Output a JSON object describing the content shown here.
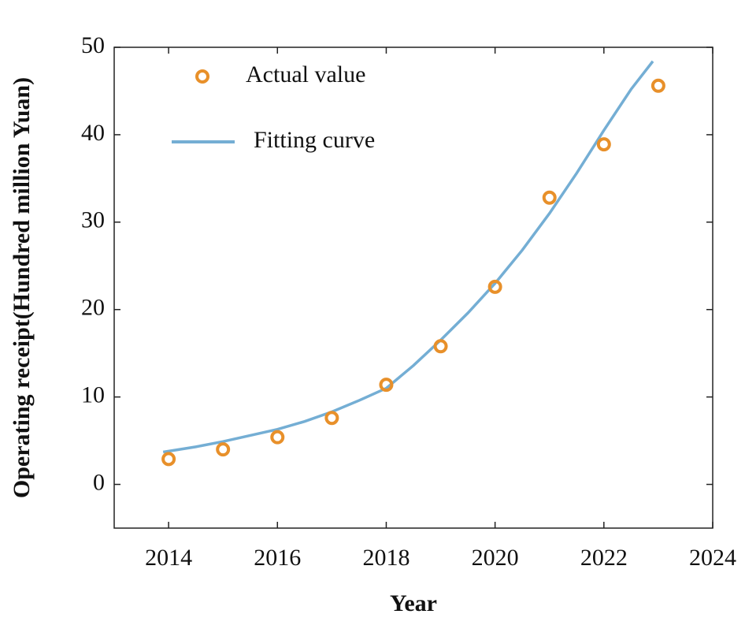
{
  "chart_data": {
    "type": "scatter",
    "x_label": "Year",
    "y_label": "Operating receipt(Hundred million Yuan)",
    "xlim": [
      2013,
      2024
    ],
    "xticks": [
      2014,
      2016,
      2018,
      2020,
      2022,
      2024
    ],
    "ylim": [
      -5,
      50
    ],
    "yticks": [
      0,
      10,
      20,
      30,
      40,
      50
    ],
    "legend": "upper-left",
    "series": [
      {
        "name": "Actual value",
        "type": "scatter",
        "color": "#e8902a",
        "x": [
          2014,
          2015,
          2016,
          2017,
          2018,
          2019,
          2020,
          2021,
          2022,
          2023
        ],
        "values": [
          2.9,
          4.0,
          5.4,
          7.6,
          11.4,
          15.8,
          22.6,
          32.8,
          38.9,
          45.6
        ]
      },
      {
        "name": "Fitting curve",
        "type": "line",
        "color": "#74aed4",
        "x": [
          2013.9,
          2014.5,
          2015,
          2015.5,
          2016,
          2016.5,
          2017,
          2017.5,
          2018,
          2018.5,
          2019,
          2019.5,
          2020,
          2020.5,
          2021,
          2021.5,
          2022,
          2022.5,
          2022.9
        ],
        "values": [
          3.7,
          4.3,
          4.9,
          5.6,
          6.3,
          7.2,
          8.3,
          9.6,
          11.0,
          13.6,
          16.5,
          19.6,
          23.0,
          26.8,
          31.0,
          35.6,
          40.5,
          45.2,
          48.4
        ]
      }
    ]
  }
}
